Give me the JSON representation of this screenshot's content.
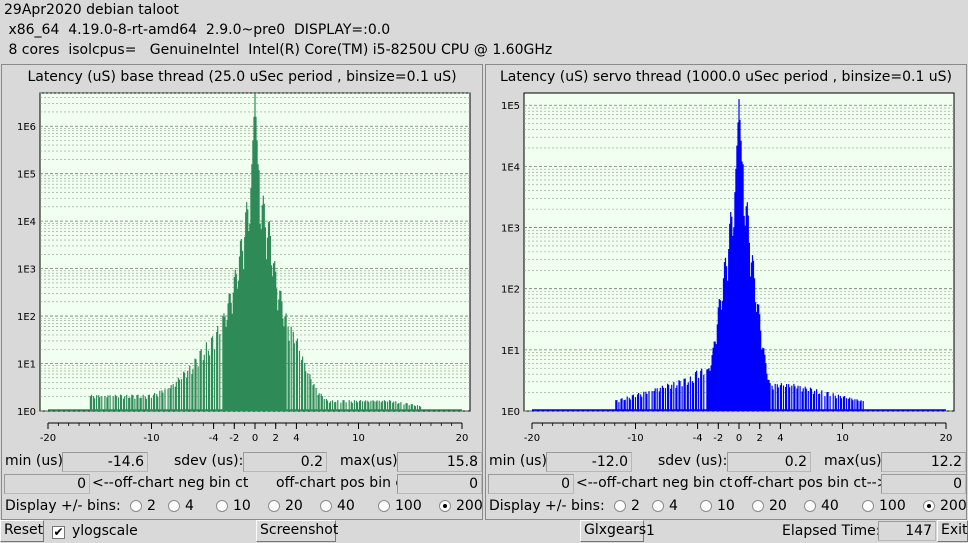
{
  "header": {
    "line1": "29Apr2020 debian taloot",
    "line2": " x86_64  4.19.0-8-rt-amd64  2.9.0~pre0  DISPLAY=:0.0",
    "line3": " 8 cores  isolcpus=   GenuineIntel  Intel(R) Core(TM) i5-8250U CPU @ 1.60GHz"
  },
  "labels": {
    "min": "min (us)",
    "sdev": "sdev (us):",
    "max": "max(us)",
    "neg_bin": "<--off-chart neg bin ct",
    "pos_bin": "off-chart pos bin ct-->",
    "display_bins": "Display +/- bins:"
  },
  "bins_options": [
    "2",
    "4",
    "10",
    "20",
    "40",
    "100",
    "200"
  ],
  "base": {
    "title": "Latency (uS) base thread (25.0 uSec period , binsize=0.1 uS)",
    "min": "-14.6",
    "sdev": "0.2",
    "max": "15.8",
    "neg_ct": "0",
    "pos_ct": "0",
    "selected_bins": "200",
    "color": "#2e8b57"
  },
  "servo": {
    "title": "Latency (uS) servo thread (1000.0 uSec period , binsize=0.1 uS)",
    "min": "-12.0",
    "sdev": "0.2",
    "max": "12.2",
    "neg_ct": "0",
    "pos_ct": "0",
    "selected_bins": "200",
    "color": "#0000ff"
  },
  "bottom": {
    "reset": "Reset",
    "ylogscale": "ylogscale",
    "ylogscale_checked": true,
    "screenshot": "Screenshot",
    "glxgears": "Glxgears",
    "glxgears_count": "1",
    "elapsed_label": "Elapsed Time:",
    "elapsed_value": "147",
    "exit": "Exit"
  },
  "chart_data": [
    {
      "type": "bar",
      "title": "Latency (uS) base thread (25.0 uSec period , binsize=0.1 uS)",
      "x_ticks": [
        -20,
        -10,
        -4,
        -2,
        0,
        2,
        4,
        10,
        20
      ],
      "y_ticks": [
        "1E0",
        "1E1",
        "1E2",
        "1E3",
        "1E4",
        "1E5",
        "1E6"
      ],
      "yscale": "log",
      "xlim": [
        -20,
        20
      ],
      "ylim_log10": [
        0,
        6.7
      ],
      "grid": true,
      "profile": [
        {
          "x": -16,
          "log10": 0.3
        },
        {
          "x": -10,
          "log10": 0.3
        },
        {
          "x": -8,
          "log10": 0.5
        },
        {
          "x": -6,
          "log10": 0.9
        },
        {
          "x": -5,
          "log10": 1.2
        },
        {
          "x": -4,
          "log10": 1.4
        },
        {
          "x": -3,
          "log10": 1.8
        },
        {
          "x": -2,
          "log10": 2.5
        },
        {
          "x": -1.5,
          "log10": 3.0
        },
        {
          "x": -1,
          "log10": 3.6
        },
        {
          "x": -0.5,
          "log10": 4.2
        },
        {
          "x": 0,
          "log10": 6.7
        },
        {
          "x": 0.5,
          "log10": 4.2
        },
        {
          "x": 1,
          "log10": 3.8
        },
        {
          "x": 1.5,
          "log10": 3.4
        },
        {
          "x": 2,
          "log10": 2.6
        },
        {
          "x": 3,
          "log10": 1.8
        },
        {
          "x": 4,
          "log10": 1.4
        },
        {
          "x": 5,
          "log10": 0.8
        },
        {
          "x": 6,
          "log10": 0.4
        },
        {
          "x": 7,
          "log10": 0.2
        },
        {
          "x": 13,
          "log10": 0.2
        },
        {
          "x": 16,
          "log10": 0.1
        }
      ]
    },
    {
      "type": "bar",
      "title": "Latency (uS) servo thread (1000.0 uSec period , binsize=0.1 uS)",
      "x_ticks": [
        -20,
        -10,
        -4,
        -2,
        0,
        2,
        4,
        10,
        20
      ],
      "y_ticks": [
        "1E0",
        "1E1",
        "1E2",
        "1E3",
        "1E4",
        "1E5"
      ],
      "yscale": "log",
      "xlim": [
        -20,
        20
      ],
      "ylim_log10": [
        0,
        5.2
      ],
      "grid": true,
      "profile": [
        {
          "x": -12,
          "log10": 0.15
        },
        {
          "x": -4.5,
          "log10": 0.5
        },
        {
          "x": -4,
          "log10": 0.6
        },
        {
          "x": -3,
          "log10": 0.6
        },
        {
          "x": -2.5,
          "log10": 0.9
        },
        {
          "x": -2,
          "log10": 1.5
        },
        {
          "x": -1.5,
          "log10": 2.0
        },
        {
          "x": -1,
          "log10": 2.6
        },
        {
          "x": -0.5,
          "log10": 3.2
        },
        {
          "x": 0,
          "log10": 5.1
        },
        {
          "x": 0.5,
          "log10": 3.4
        },
        {
          "x": 1,
          "log10": 2.7
        },
        {
          "x": 1.5,
          "log10": 2.0
        },
        {
          "x": 2,
          "log10": 1.4
        },
        {
          "x": 2.5,
          "log10": 0.8
        },
        {
          "x": 3,
          "log10": 0.4
        },
        {
          "x": 4,
          "log10": 0.4
        },
        {
          "x": 5,
          "log10": 0.4
        },
        {
          "x": 12,
          "log10": 0.15
        }
      ]
    }
  ]
}
